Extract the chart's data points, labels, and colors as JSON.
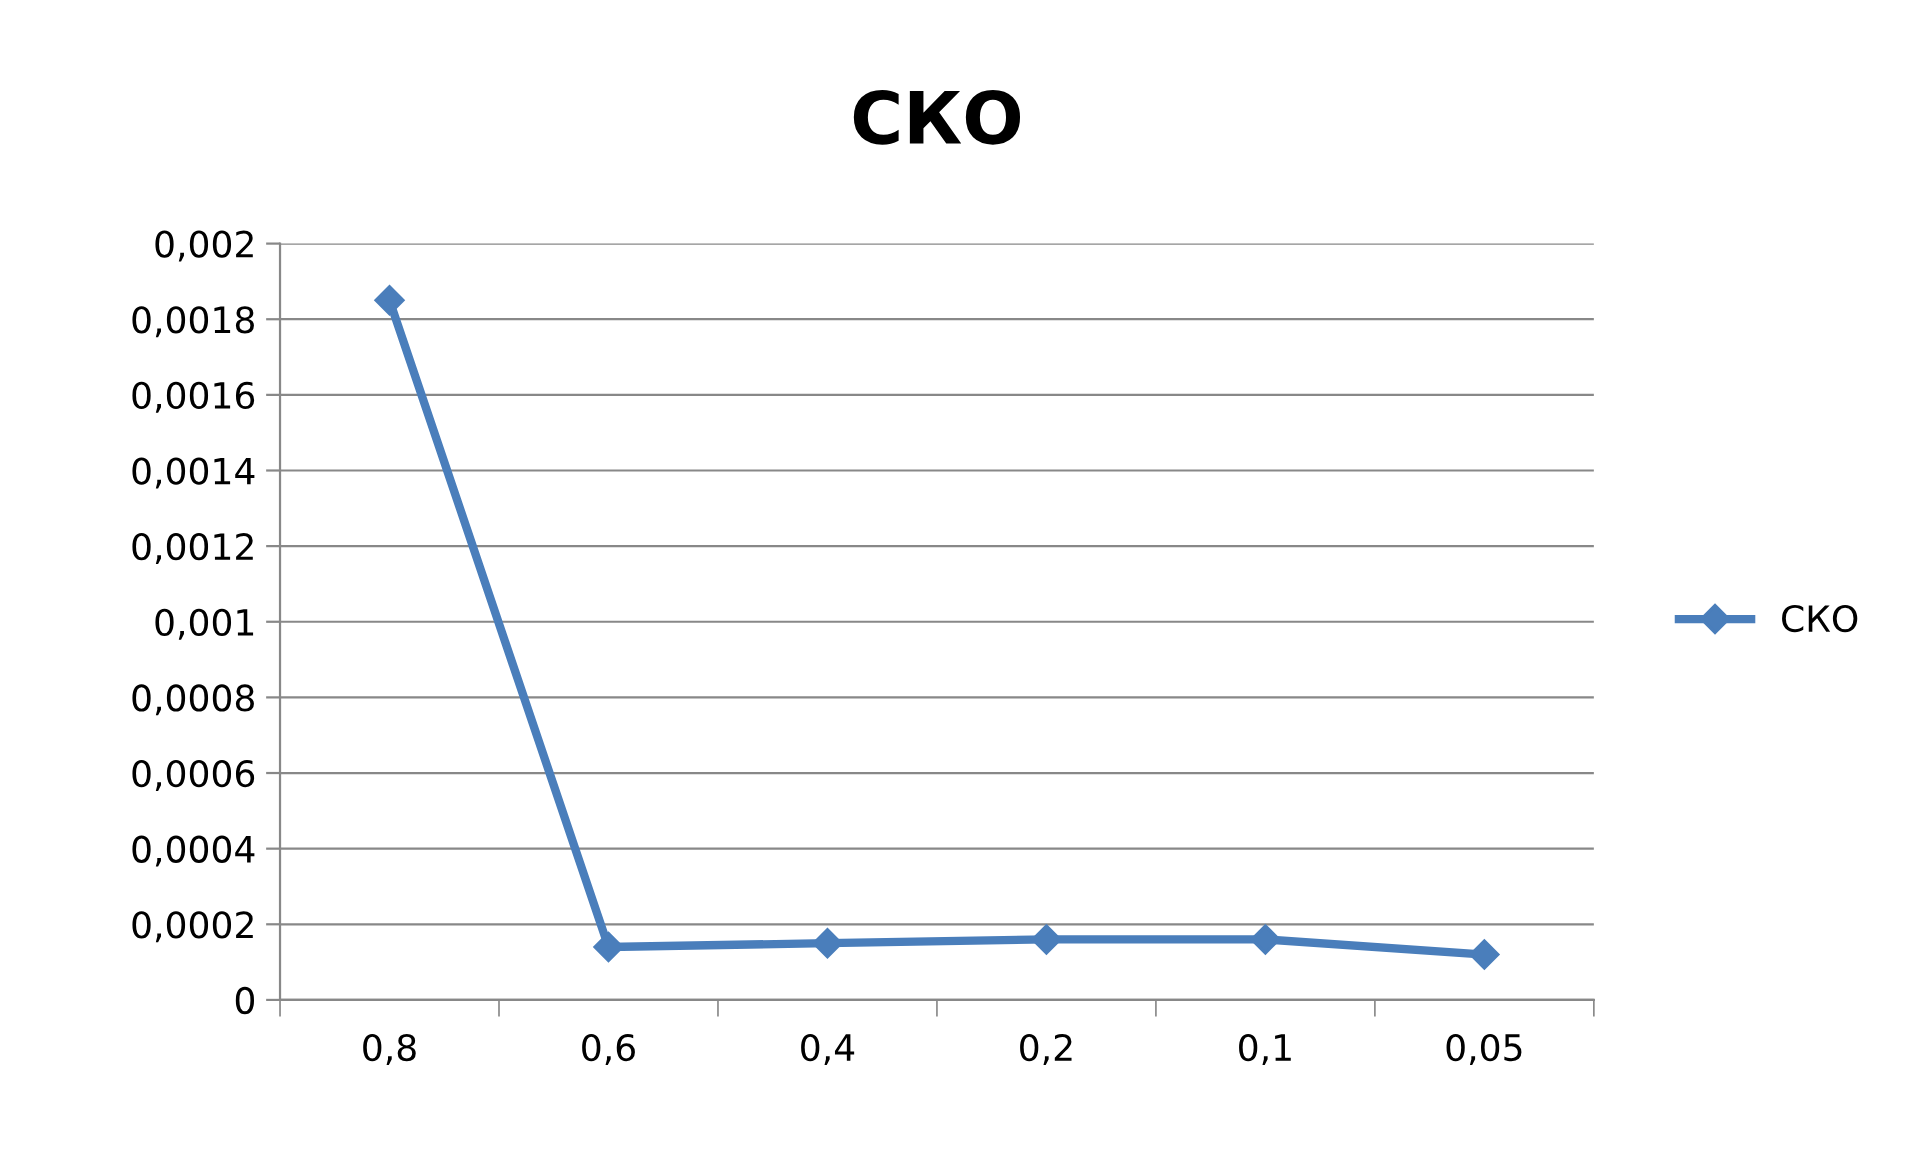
{
  "chart_data": {
    "type": "line",
    "title": "СКО",
    "categories": [
      "0,8",
      "0,6",
      "0,4",
      "0,2",
      "0,1",
      "0,05"
    ],
    "series": [
      {
        "name": "СКО",
        "color": "#4a7ebb",
        "values": [
          0.00185,
          0.00014,
          0.00015,
          0.00016,
          0.00016,
          0.00012
        ]
      }
    ],
    "ylim": [
      0,
      0.002
    ],
    "yticks": [
      0,
      {
        "value": 0.0002,
        "label": "0,0002"
      },
      {
        "value": 0.0004,
        "label": "0,0004"
      },
      {
        "value": 0.0006,
        "label": "0,0006"
      },
      {
        "value": 0.0008,
        "label": "0,0008"
      },
      {
        "value": 0.001,
        "label": "0,001"
      },
      {
        "value": 0.0012,
        "label": "0,0012"
      },
      {
        "value": 0.0014,
        "label": "0,0014"
      },
      {
        "value": 0.0016,
        "label": "0,0016"
      },
      {
        "value": 0.0018,
        "label": "0,0018"
      },
      {
        "value": 0.002,
        "label": "0,002"
      }
    ],
    "grid": "y",
    "legend": "right",
    "marker": "diamond",
    "line_style": "solid"
  }
}
